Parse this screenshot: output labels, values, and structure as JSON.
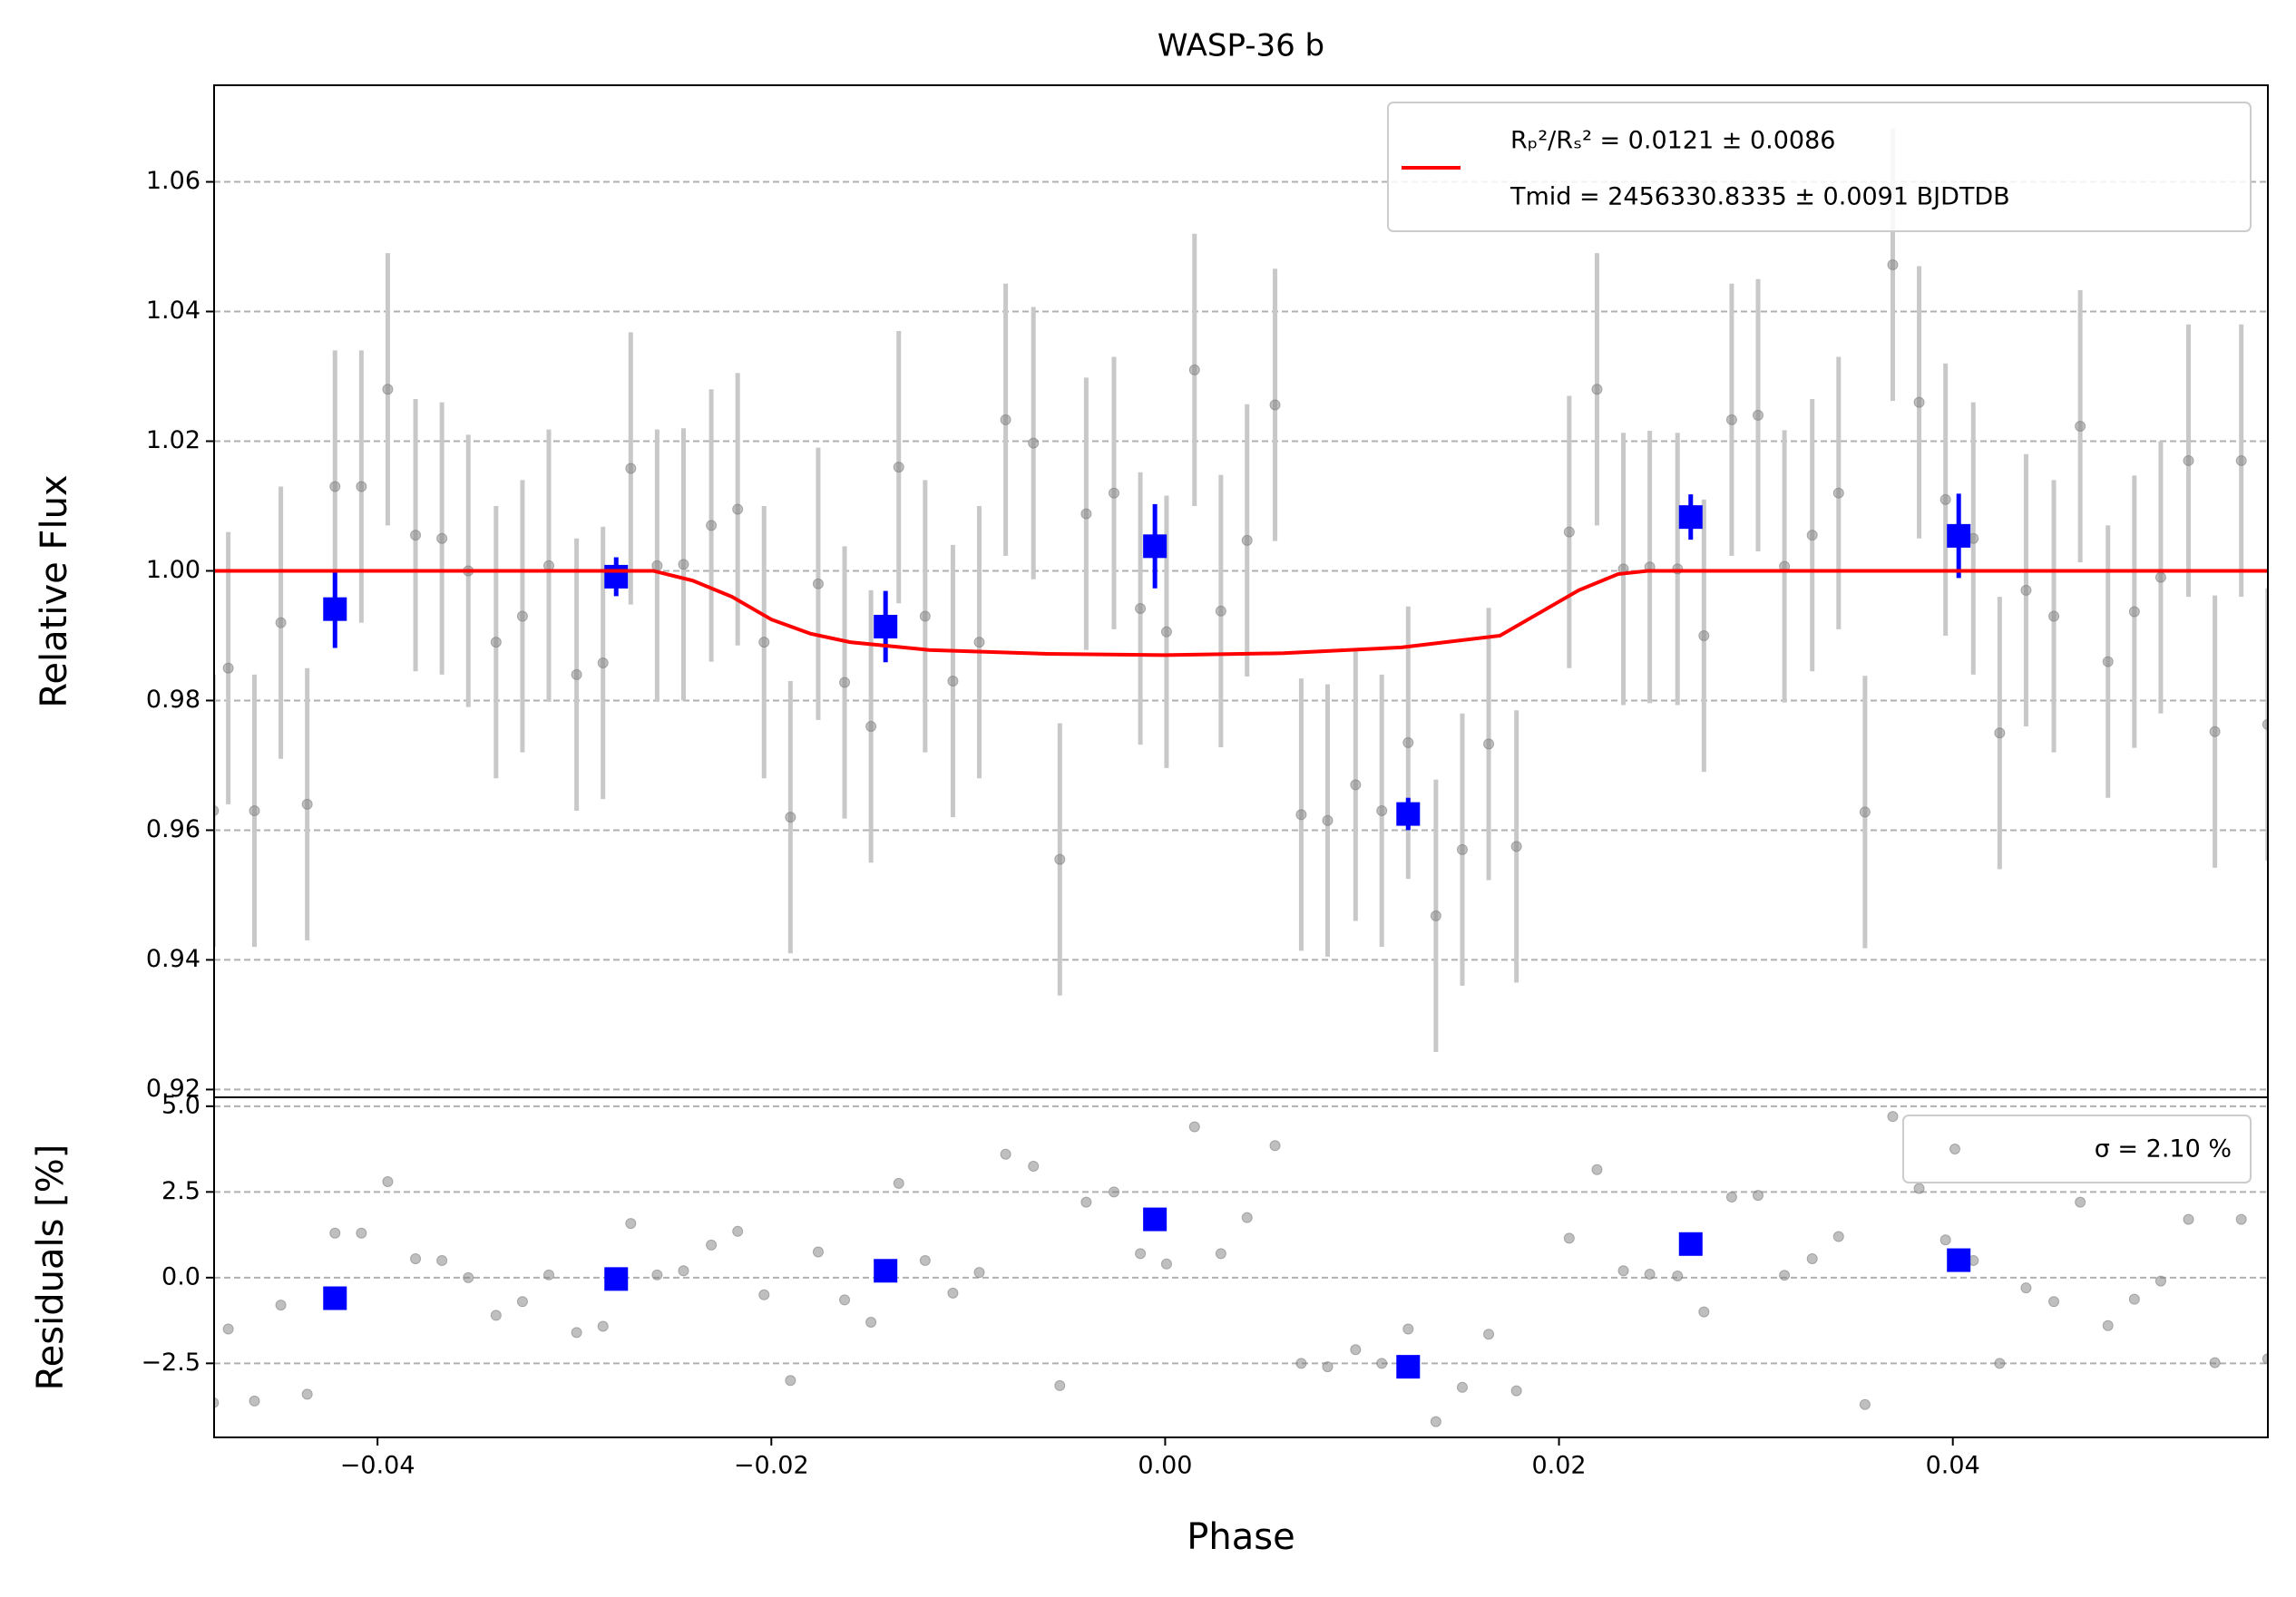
{
  "chart_data": [
    {
      "type": "errorbar",
      "title": "WASP-36 b",
      "ylabel": "Relative Flux",
      "xlim": [
        -0.0483,
        0.056
      ],
      "ylim": [
        0.9188,
        1.0749
      ],
      "yticks": [
        0.92,
        0.94,
        0.96,
        0.98,
        {
          "value": 1,
          "label": "1.00"
        },
        1.02,
        1.04,
        1.06
      ],
      "grid": true,
      "legend": "upper right",
      "x": [
        -0.04833,
        -0.04758,
        -0.04625,
        -0.04491,
        -0.04357,
        -0.04216,
        -0.04082,
        -0.03948,
        -0.03807,
        -0.03673,
        -0.03539,
        -0.03398,
        -0.03264,
        -0.0313,
        -0.02989,
        -0.02855,
        -0.02714,
        -0.0258,
        -0.02446,
        -0.02305,
        -0.02171,
        -0.02037,
        -0.01903,
        -0.01762,
        -0.01628,
        -0.01494,
        -0.01353,
        -0.01219,
        -0.01078,
        -0.00944,
        -0.0081,
        -0.00669,
        -0.00535,
        -0.00401,
        -0.0026,
        -0.00126,
        7e-05,
        0.00149,
        0.00283,
        0.00416,
        0.00558,
        0.00691,
        0.00825,
        0.00967,
        0.011,
        0.01234,
        0.01375,
        0.01509,
        0.01643,
        0.01784,
        0.02052,
        0.02193,
        0.02327,
        0.02461,
        0.02602,
        0.02736,
        0.02877,
        0.03011,
        0.03145,
        0.03286,
        0.0342,
        0.03554,
        0.03695,
        0.03829,
        0.03963,
        0.04104,
        0.04238,
        0.04372,
        0.04513,
        0.04647,
        0.04788,
        0.04922,
        0.05056,
        0.05197,
        0.05331,
        0.05465,
        0.05599
      ],
      "series": [
        {
          "color": "#808080",
          "yerr": 0.021,
          "values": [
            0.963,
            0.985,
            0.963,
            0.992,
            0.964,
            1.013,
            1.013,
            1.028,
            1.0055,
            1.005,
            1.0,
            0.989,
            0.993,
            1.0008,
            0.984,
            0.9858,
            1.0158,
            1.0008,
            1.001,
            1.007,
            1.0095,
            0.989,
            0.962,
            0.998,
            0.9828,
            0.976,
            1.016,
            0.993,
            0.983,
            0.989,
            1.0233,
            1.0197,
            0.9555,
            1.0088,
            1.012,
            0.9942,
            0.9906,
            1.031,
            0.9938,
            1.0047,
            1.0256,
            0.9624,
            0.9615,
            0.967,
            0.963,
            0.9735,
            0.9468,
            0.957,
            0.9733,
            0.9575,
            1.006,
            1.028,
            1.0003,
            1.0006,
            1.0003,
            0.99,
            1.0233,
            1.024,
            1.0007,
            1.0055,
            1.012,
            0.9628,
            1.0472,
            1.026,
            1.011,
            1.005,
            0.975,
            0.997,
            0.993,
            1.0223,
            0.986,
            0.9937,
            0.999,
            1.017,
            0.9752,
            1.017,
            0.9763
          ]
        },
        {
          "color": "#0000ff",
          "x": [
            -0.04216,
            -0.02788,
            -0.0142,
            -0.00052,
            0.01234,
            0.02669,
            0.0403
          ],
          "values": [
            0.9941,
            0.9991,
            0.9914,
            1.0038,
            0.9625,
            1.0083,
            1.0054
          ],
          "yerr": [
            0.006,
            0.003,
            0.0055,
            0.0065,
            0.0025,
            0.0035,
            0.0065
          ]
        }
      ],
      "model": {
        "name": [
          "Rₚ²/Rₛ² = 0.0121 ± 0.0086",
          "Tmid = 2456330.8335 ± 0.0091 BJDTDB"
        ],
        "color": "#ff0000",
        "x": [
          -0.0483,
          -0.026,
          -0.024,
          -0.022,
          -0.02,
          -0.018,
          -0.016,
          -0.012,
          -0.006,
          0.0,
          0.006,
          0.012,
          0.017,
          0.019,
          0.021,
          0.023,
          0.0245,
          0.056
        ],
        "values": [
          1.0,
          1.0,
          0.9985,
          0.996,
          0.9925,
          0.9903,
          0.989,
          0.9878,
          0.9872,
          0.987,
          0.9873,
          0.9882,
          0.99,
          0.9935,
          0.997,
          0.9995,
          1.0,
          1.0
        ]
      }
    },
    {
      "type": "scatter",
      "ylabel": "Residuals [%]",
      "xlabel": "Phase",
      "xlim": [
        -0.0483,
        0.056
      ],
      "ylim": [
        -4.66,
        5.26
      ],
      "xticks": [
        {
          "value": -0.04,
          "label": "−0.04"
        },
        {
          "value": -0.02,
          "label": "−0.02"
        },
        {
          "value": 0,
          "label": "0.00"
        },
        0.02,
        0.04
      ],
      "yticks": [
        {
          "value": -2.5,
          "label": "−2.5"
        },
        {
          "value": 0,
          "label": "0.0"
        },
        2.5,
        {
          "value": 5,
          "label": "5.0"
        }
      ],
      "grid": true,
      "legend": "upper right",
      "x": [
        -0.04833,
        -0.04758,
        -0.04625,
        -0.04491,
        -0.04357,
        -0.04216,
        -0.04082,
        -0.03948,
        -0.03807,
        -0.03673,
        -0.03539,
        -0.03398,
        -0.03264,
        -0.0313,
        -0.02989,
        -0.02855,
        -0.02714,
        -0.0258,
        -0.02446,
        -0.02305,
        -0.02171,
        -0.02037,
        -0.01903,
        -0.01762,
        -0.01628,
        -0.01494,
        -0.01353,
        -0.01219,
        -0.01078,
        -0.00944,
        -0.0081,
        -0.00669,
        -0.00535,
        -0.00401,
        -0.0026,
        -0.00126,
        7e-05,
        0.00149,
        0.00283,
        0.00416,
        0.00558,
        0.00691,
        0.00825,
        0.00967,
        0.011,
        0.01234,
        0.01375,
        0.01509,
        0.01643,
        0.01784,
        0.02052,
        0.02193,
        0.02327,
        0.02461,
        0.02602,
        0.02736,
        0.02877,
        0.03011,
        0.03145,
        0.03286,
        0.0342,
        0.03554,
        0.03695,
        0.03829,
        0.03963,
        0.04104,
        0.04238,
        0.04372,
        0.04513,
        0.04647,
        0.04788,
        0.04922,
        0.05056,
        0.05197,
        0.05331,
        0.05465,
        0.05599
      ],
      "series": [
        {
          "name": "σ = 2.10 %",
          "color": "#808080",
          "values": [
            -3.65,
            -1.5,
            -3.6,
            -0.8,
            -3.4,
            1.3,
            1.3,
            2.8,
            0.55,
            0.5,
            0.0,
            -1.1,
            -0.7,
            0.08,
            -1.6,
            -1.42,
            1.58,
            0.08,
            0.2,
            0.95,
            1.35,
            -0.5,
            -3.0,
            0.75,
            -0.65,
            -1.3,
            2.75,
            0.5,
            -0.45,
            0.15,
            3.6,
            3.25,
            -3.15,
            2.2,
            2.5,
            0.7,
            0.4,
            4.4,
            0.7,
            1.75,
            3.85,
            -2.5,
            -2.6,
            -2.1,
            -2.5,
            -1.5,
            -4.2,
            -3.2,
            -1.65,
            -3.3,
            1.15,
            3.15,
            0.2,
            0.1,
            0.05,
            -1.0,
            2.35,
            2.4,
            0.07,
            0.55,
            1.2,
            -3.7,
            4.7,
            2.6,
            1.1,
            0.5,
            -2.5,
            -0.3,
            -0.7,
            2.2,
            -1.4,
            -0.63,
            -0.1,
            1.7,
            -2.48,
            1.7,
            -2.37
          ]
        },
        {
          "color": "#0000ff",
          "x": [
            -0.04216,
            -0.02788,
            -0.0142,
            -0.00052,
            0.01234,
            0.02669,
            0.0403
          ],
          "values": [
            -0.6,
            -0.04,
            0.2,
            1.7,
            -2.6,
            0.98,
            0.51
          ]
        }
      ]
    }
  ]
}
